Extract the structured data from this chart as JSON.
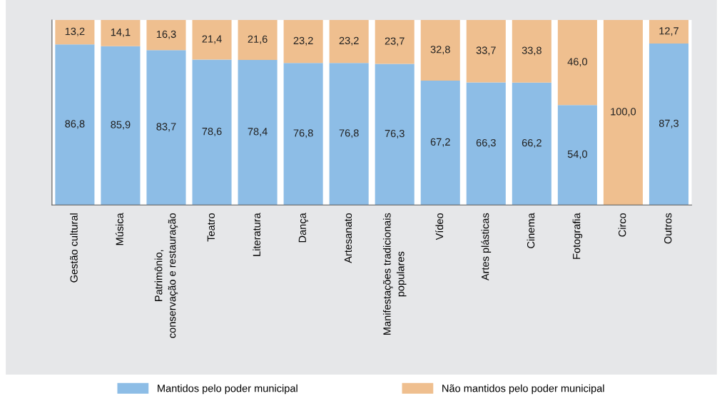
{
  "chart_data": {
    "type": "bar",
    "stacked": true,
    "ylim": [
      0,
      100
    ],
    "tick_labels": "x",
    "legend": "bottom",
    "grid": false,
    "categories": [
      "Gestão cultural",
      "Música",
      "Patrimônio,\nconservação e restauração",
      "Teatro",
      "Literatura",
      "Dança",
      "Artesanato",
      "Manifestações tradicionais\npopulares",
      "Vídeo",
      "Artes plásticas",
      "Cinema",
      "Fotografia",
      "Circo",
      "Outros"
    ],
    "series": [
      {
        "name": "Mantidos pelo poder municipal",
        "color": "#8dbde6",
        "values": [
          86.8,
          85.9,
          83.7,
          78.6,
          78.4,
          76.8,
          76.8,
          76.3,
          67.2,
          66.3,
          66.2,
          54.0,
          0,
          87.3
        ],
        "value_labels": [
          "86,8",
          "85,9",
          "83,7",
          "78,6",
          "78,4",
          "76,8",
          "76,8",
          "76,3",
          "67,2",
          "66,3",
          "66,2",
          "54,0",
          null,
          "87,3"
        ]
      },
      {
        "name": "Não mantidos pelo poder municipal",
        "color": "#efbf8f",
        "values": [
          13.2,
          14.1,
          16.3,
          21.4,
          21.6,
          23.2,
          23.2,
          23.7,
          32.8,
          33.7,
          33.8,
          46.0,
          100.0,
          12.7
        ],
        "value_labels": [
          "13,2",
          "14,1",
          "16,3",
          "21,4",
          "21,6",
          "23,2",
          "23,2",
          "23,7",
          "32,8",
          "33,7",
          "33,8",
          "46,0",
          "100,0",
          "12,7"
        ]
      }
    ]
  }
}
